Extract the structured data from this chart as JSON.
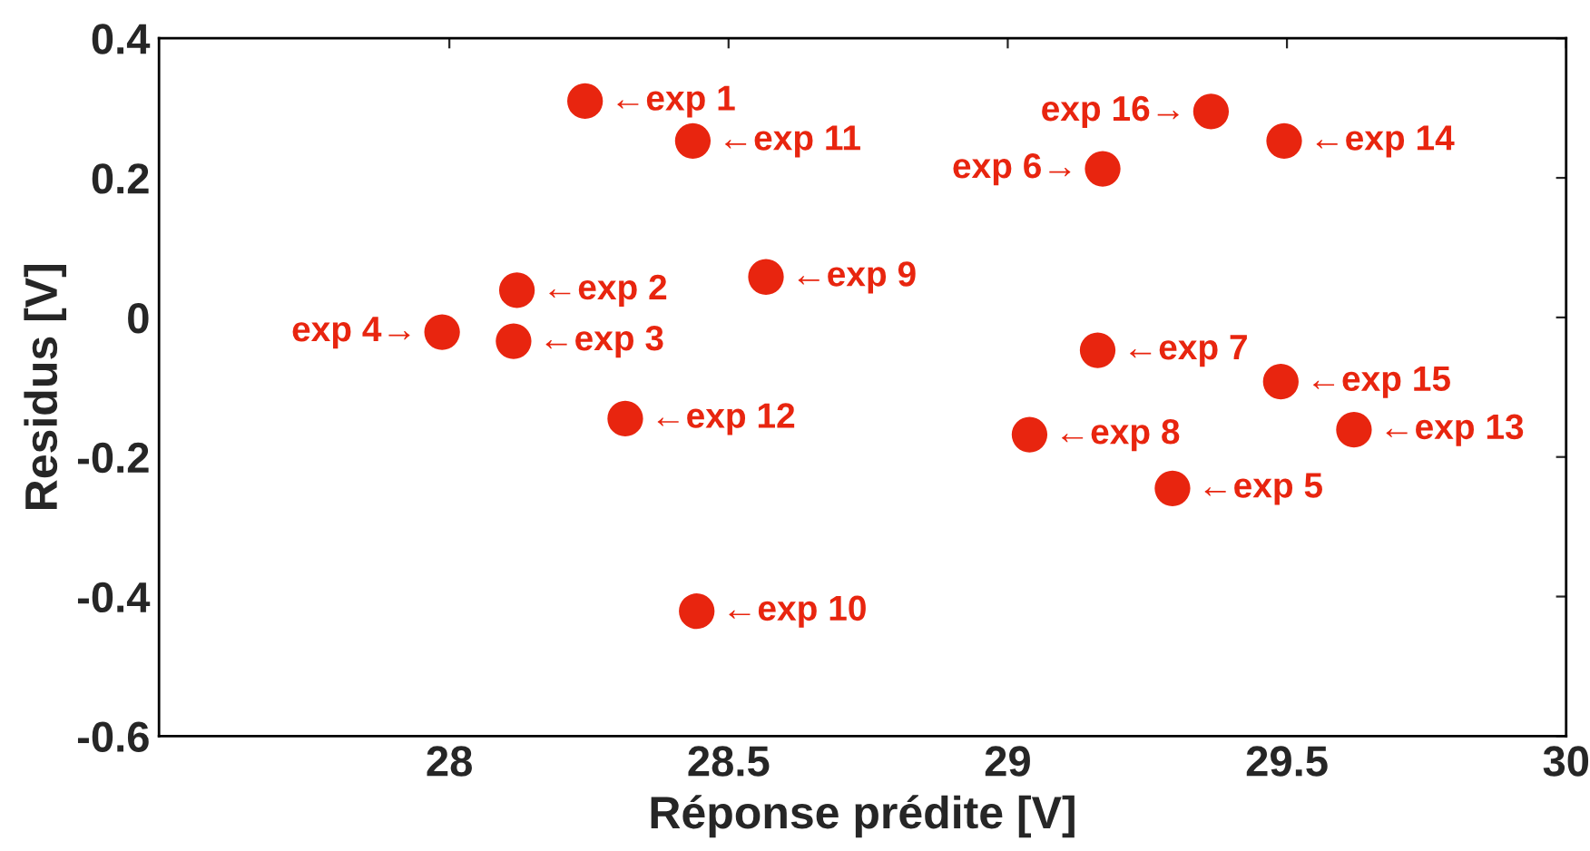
{
  "chart_data": {
    "type": "scatter",
    "xlabel": "Réponse prédite [V]",
    "ylabel": "Residus [V]",
    "x": [
      28.243,
      28.121,
      28.115,
      27.987,
      29.295,
      29.17,
      29.161,
      29.039,
      28.567,
      28.443,
      28.436,
      28.315,
      29.62,
      29.495,
      29.489,
      29.364
    ],
    "series": [
      {
        "color": "#e8250f",
        "values": [
          0.31,
          0.039,
          -0.034,
          -0.021,
          -0.245,
          0.213,
          -0.047,
          -0.168,
          0.058,
          -0.421,
          0.253,
          -0.145,
          -0.161,
          0.253,
          -0.092,
          0.295
        ]
      }
    ],
    "marker": "circle",
    "grid": false,
    "xlim": [
      27.48,
      30
    ],
    "xticks": [
      28,
      28.5,
      29,
      29.5,
      30
    ],
    "ylim": [
      -0.6,
      0.4
    ],
    "yticks": [
      0.4,
      0.2,
      0,
      -0.2,
      -0.4,
      -0.6
    ],
    "annotations": [
      {
        "text": "←exp 1",
        "x": 28.243,
        "y": 0.31
      },
      {
        "text": "←exp 2",
        "x": 28.121,
        "y": 0.039
      },
      {
        "text": "←exp 3",
        "x": 28.115,
        "y": -0.034
      },
      {
        "text": "exp 4→",
        "x": 27.987,
        "y": -0.021
      },
      {
        "text": "←exp 5",
        "x": 29.295,
        "y": -0.245
      },
      {
        "text": "exp 6→",
        "x": 29.17,
        "y": 0.213
      },
      {
        "text": "←exp 7",
        "x": 29.161,
        "y": -0.047
      },
      {
        "text": "←exp 8",
        "x": 29.039,
        "y": -0.168
      },
      {
        "text": "←exp 9",
        "x": 28.567,
        "y": 0.058
      },
      {
        "text": "←exp 10",
        "x": 28.443,
        "y": -0.421
      },
      {
        "text": "←exp 11",
        "x": 28.436,
        "y": 0.253
      },
      {
        "text": "←exp 12",
        "x": 28.315,
        "y": -0.145
      },
      {
        "text": "←exp 13",
        "x": 29.62,
        "y": -0.161
      },
      {
        "text": "←exp 14",
        "x": 29.495,
        "y": 0.253
      },
      {
        "text": "←exp 15",
        "x": 29.489,
        "y": -0.092
      },
      {
        "text": "exp 16→",
        "x": 29.364,
        "y": 0.295
      }
    ]
  }
}
